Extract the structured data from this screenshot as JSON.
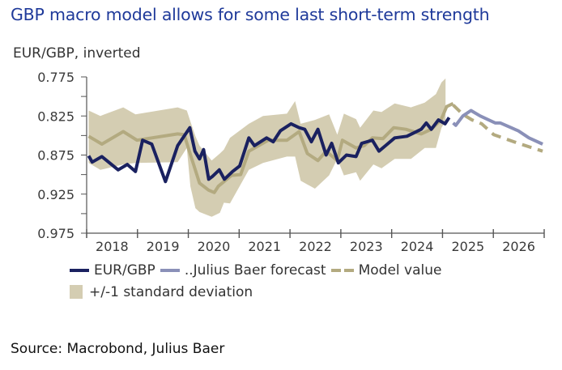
{
  "header": {
    "title": "GBP macro model allows for some last short-term strength",
    "source": "Source: Macrobond, Julius Baer"
  },
  "colors": {
    "title": "#1f3a9a",
    "eurgbp": "#1a2160",
    "forecast": "#8a90b8",
    "model": "#b3aa80",
    "band": "#d4cdb2",
    "axis": "#555555"
  },
  "chart_data": {
    "type": "line",
    "title": "GBP macro model allows for some last short-term strength",
    "ylabel": "EUR/GBP, inverted",
    "xlabel": "",
    "y_inverted": true,
    "ylim": [
      0.775,
      0.975
    ],
    "yticks": [
      "0.775",
      "0.825",
      "0.875",
      "0.925",
      "0.975"
    ],
    "yminor_step": 0.025,
    "xlim": [
      2018,
      2027
    ],
    "xtick_labels": [
      "2018",
      "2019",
      "2020",
      "2021",
      "2022",
      "2023",
      "2024",
      "2025",
      "2026"
    ],
    "grid": false,
    "legend_position": "bottom",
    "legend": [
      {
        "label": "EUR/GBP",
        "style": "solid-line",
        "series": "eurgbp"
      },
      {
        "label": "..Julius Baer forecast",
        "style": "solid-line",
        "series": "forecast"
      },
      {
        "label": "Model value",
        "style": "solid-and-dashed",
        "series": "model"
      },
      {
        "label": "+/-1 standard deviation",
        "style": "area",
        "series": "band"
      }
    ],
    "series": [
      {
        "name": "EUR/GBP",
        "key": "eurgbp",
        "x": [
          2018.04,
          2018.11,
          2018.3,
          2018.62,
          2018.8,
          2018.96,
          2019.1,
          2019.28,
          2019.55,
          2019.79,
          2020.03,
          2020.13,
          2020.22,
          2020.3,
          2020.4,
          2020.48,
          2020.61,
          2020.71,
          2020.87,
          2021.01,
          2021.19,
          2021.3,
          2021.54,
          2021.67,
          2021.81,
          2022.02,
          2022.18,
          2022.29,
          2022.42,
          2022.55,
          2022.71,
          2022.82,
          2022.95,
          2023.11,
          2023.3,
          2023.41,
          2023.62,
          2023.75,
          2023.88,
          2024.06,
          2024.3,
          2024.58,
          2024.68,
          2024.78,
          2024.92,
          2025.05,
          2025.13
        ],
        "values": [
          0.876,
          0.884,
          0.877,
          0.894,
          0.887,
          0.896,
          0.856,
          0.861,
          0.909,
          0.863,
          0.84,
          0.87,
          0.88,
          0.868,
          0.906,
          0.902,
          0.894,
          0.906,
          0.896,
          0.889,
          0.853,
          0.863,
          0.853,
          0.858,
          0.844,
          0.835,
          0.84,
          0.842,
          0.858,
          0.842,
          0.875,
          0.86,
          0.885,
          0.875,
          0.877,
          0.86,
          0.856,
          0.87,
          0.863,
          0.853,
          0.851,
          0.842,
          0.834,
          0.842,
          0.83,
          0.835,
          0.827
        ]
      },
      {
        "name": "..Julius Baer forecast",
        "key": "forecast",
        "x": [
          2025.21,
          2025.26,
          2025.4,
          2025.56,
          2025.74,
          2026.04,
          2026.14,
          2026.49,
          2026.7,
          2026.97
        ],
        "values": [
          0.834,
          0.837,
          0.825,
          0.818,
          0.825,
          0.834,
          0.834,
          0.844,
          0.853,
          0.861
        ]
      },
      {
        "name": "Model value",
        "key": "model",
        "x": [
          2018.04,
          2018.3,
          2018.72,
          2018.99,
          2019.79,
          2019.92,
          2020.02,
          2020.22,
          2020.4,
          2020.51,
          2020.59,
          2020.85,
          2021.03,
          2021.19,
          2021.57,
          2021.94,
          2022.18,
          2022.34,
          2022.55,
          2022.71,
          2022.93,
          2023.03,
          2023.3,
          2023.46,
          2023.62,
          2023.83,
          2024.04,
          2024.28,
          2024.58,
          2024.78,
          2024.97,
          2025.08,
          2025.21
        ],
        "values": [
          0.851,
          0.861,
          0.845,
          0.856,
          0.848,
          0.849,
          0.87,
          0.911,
          0.92,
          0.923,
          0.915,
          0.901,
          0.9,
          0.87,
          0.856,
          0.856,
          0.845,
          0.873,
          0.882,
          0.87,
          0.882,
          0.856,
          0.866,
          0.863,
          0.853,
          0.854,
          0.84,
          0.842,
          0.848,
          0.842,
          0.83,
          0.813,
          0.809
        ]
      },
      {
        "name": "Model value (projection)",
        "key": "model_projection",
        "style": "dashed",
        "x": [
          2025.21,
          2025.4,
          2025.58,
          2025.77,
          2026.01,
          2026.49,
          2026.97
        ],
        "values": [
          0.811,
          0.823,
          0.83,
          0.835,
          0.849,
          0.86,
          0.87
        ]
      },
      {
        "name": "+/-1 standard deviation",
        "key": "band",
        "type": "area",
        "x": [
          2018.04,
          2018.27,
          2018.72,
          2018.96,
          2019.79,
          2019.97,
          2020.04,
          2020.14,
          2020.22,
          2020.46,
          2020.62,
          2020.7,
          2020.82,
          2021.19,
          2021.47,
          2021.94,
          2022.1,
          2022.21,
          2022.49,
          2022.77,
          2022.93,
          2023.06,
          2023.3,
          2023.38,
          2023.64,
          2023.8,
          2024.06,
          2024.38,
          2024.65,
          2024.87,
          2024.98,
          2025.06
        ],
        "upper": [
          0.818,
          0.825,
          0.814,
          0.823,
          0.814,
          0.818,
          0.832,
          0.851,
          0.863,
          0.882,
          0.873,
          0.868,
          0.853,
          0.835,
          0.825,
          0.822,
          0.806,
          0.835,
          0.83,
          0.823,
          0.849,
          0.822,
          0.829,
          0.84,
          0.818,
          0.82,
          0.809,
          0.814,
          0.808,
          0.797,
          0.782,
          0.777
        ],
        "lower": [
          0.885,
          0.894,
          0.887,
          0.885,
          0.884,
          0.866,
          0.915,
          0.943,
          0.948,
          0.954,
          0.949,
          0.936,
          0.937,
          0.894,
          0.885,
          0.877,
          0.877,
          0.908,
          0.918,
          0.901,
          0.88,
          0.901,
          0.897,
          0.908,
          0.887,
          0.892,
          0.88,
          0.88,
          0.866,
          0.866,
          0.84,
          0.832
        ]
      }
    ]
  },
  "legend": {
    "eurgbp": "EUR/GBP",
    "forecast": "..Julius Baer forecast",
    "model": "Model value",
    "band": "+/-1 standard deviation"
  }
}
